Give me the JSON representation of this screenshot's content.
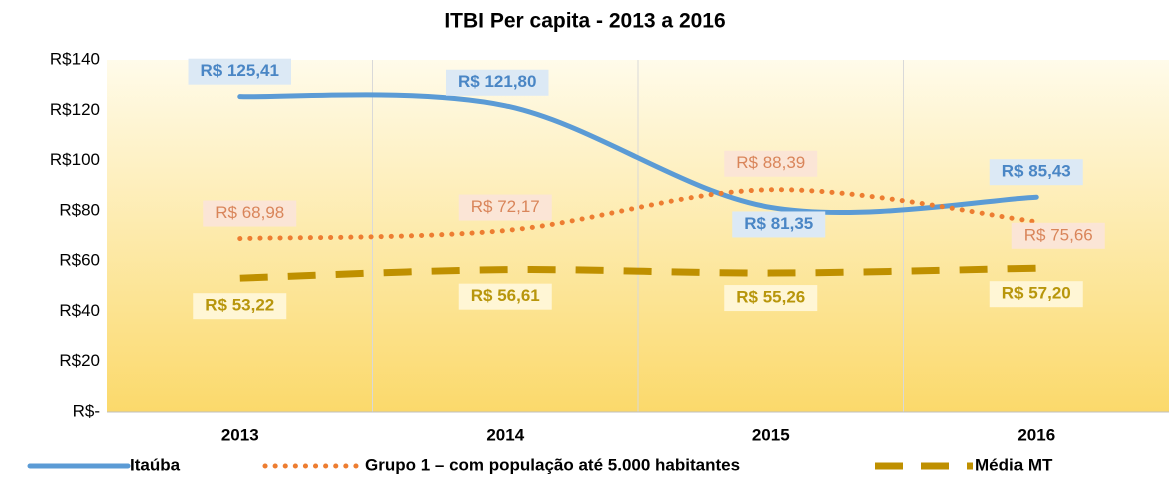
{
  "chart_data": {
    "type": "line",
    "title": "ITBI Per capita - 2013 a 2016",
    "categories": [
      "2013",
      "2014",
      "2015",
      "2016"
    ],
    "series": [
      {
        "name": "Itaúba",
        "color": "#5b9bd5",
        "values": [
          125.41,
          121.8,
          81.35,
          85.43
        ],
        "value_labels": [
          "R$ 125,41",
          "R$ 121,80",
          "R$ 81,35",
          "R$ 85,43"
        ]
      },
      {
        "name": "Grupo 1 – com população até 5.000 habitantes",
        "color": "#ed7d31",
        "values": [
          68.98,
          72.17,
          88.39,
          75.66
        ],
        "value_labels": [
          "R$ 68,98",
          "R$ 72,17",
          "R$ 88,39",
          "R$ 75,66"
        ]
      },
      {
        "name": "Média MT",
        "color": "#bf9000",
        "values": [
          53.22,
          56.61,
          55.26,
          57.2
        ],
        "value_labels": [
          "R$ 53,22",
          "R$ 56,61",
          "R$ 55,26",
          "R$ 57,20"
        ]
      }
    ],
    "ylim": [
      0,
      140
    ],
    "yticks": [
      {
        "value": 0,
        "label": "R$-"
      },
      {
        "value": 20,
        "label": "R$20"
      },
      {
        "value": 40,
        "label": "R$40"
      },
      {
        "value": 60,
        "label": "R$60"
      },
      {
        "value": 80,
        "label": "R$80"
      },
      {
        "value": 100,
        "label": "R$100"
      },
      {
        "value": 120,
        "label": "R$120"
      },
      {
        "value": 140,
        "label": "R$140"
      }
    ],
    "grid": true,
    "legend": "bottom"
  }
}
